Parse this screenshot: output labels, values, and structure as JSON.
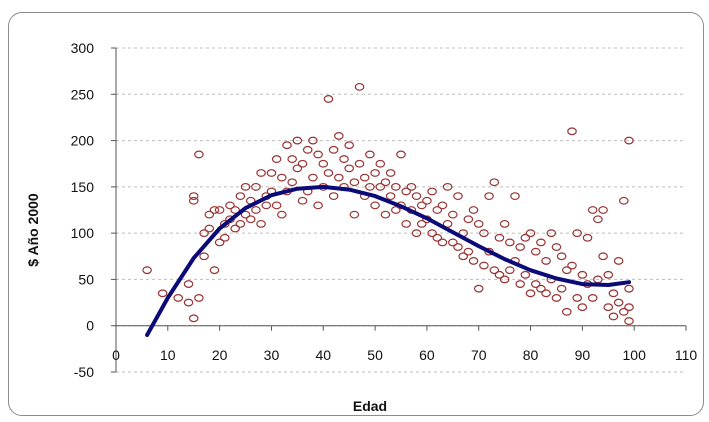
{
  "chart_data": {
    "type": "scatter",
    "title": "",
    "xlabel": "Edad",
    "ylabel": "$ Año 2000",
    "xlim": [
      0,
      110
    ],
    "ylim": [
      -50,
      300
    ],
    "x_ticks": [
      0,
      10,
      20,
      30,
      40,
      50,
      60,
      70,
      80,
      90,
      100,
      110
    ],
    "y_ticks": [
      -50,
      0,
      50,
      100,
      150,
      200,
      250,
      300
    ],
    "grid": "horizontal-dashed",
    "legend": "none",
    "colors": {
      "points": "#993333",
      "trend": "#0a0a78",
      "grid": "#bdbdbd"
    },
    "series": [
      {
        "type": "scatter",
        "points": [
          [
            6,
            60
          ],
          [
            9,
            35
          ],
          [
            12,
            30
          ],
          [
            14,
            25
          ],
          [
            14,
            45
          ],
          [
            15,
            140
          ],
          [
            15,
            135
          ],
          [
            15,
            8
          ],
          [
            16,
            185
          ],
          [
            16,
            30
          ],
          [
            17,
            100
          ],
          [
            17,
            75
          ],
          [
            18,
            105
          ],
          [
            18,
            120
          ],
          [
            19,
            125
          ],
          [
            19,
            60
          ],
          [
            20,
            90
          ],
          [
            20,
            125
          ],
          [
            21,
            110
          ],
          [
            21,
            95
          ],
          [
            22,
            115
          ],
          [
            22,
            130
          ],
          [
            23,
            105
          ],
          [
            23,
            125
          ],
          [
            24,
            140
          ],
          [
            24,
            110
          ],
          [
            25,
            120
          ],
          [
            25,
            150
          ],
          [
            26,
            115
          ],
          [
            26,
            135
          ],
          [
            27,
            150
          ],
          [
            27,
            125
          ],
          [
            28,
            165
          ],
          [
            28,
            110
          ],
          [
            29,
            140
          ],
          [
            29,
            130
          ],
          [
            30,
            165
          ],
          [
            30,
            145
          ],
          [
            31,
            180
          ],
          [
            31,
            130
          ],
          [
            32,
            160
          ],
          [
            32,
            120
          ],
          [
            33,
            195
          ],
          [
            33,
            145
          ],
          [
            34,
            180
          ],
          [
            34,
            155
          ],
          [
            35,
            200
          ],
          [
            35,
            170
          ],
          [
            36,
            175
          ],
          [
            36,
            135
          ],
          [
            37,
            190
          ],
          [
            37,
            145
          ],
          [
            38,
            200
          ],
          [
            38,
            160
          ],
          [
            39,
            185
          ],
          [
            39,
            130
          ],
          [
            40,
            175
          ],
          [
            40,
            150
          ],
          [
            41,
            245
          ],
          [
            41,
            165
          ],
          [
            42,
            190
          ],
          [
            42,
            140
          ],
          [
            43,
            205
          ],
          [
            43,
            160
          ],
          [
            44,
            180
          ],
          [
            44,
            150
          ],
          [
            45,
            195
          ],
          [
            45,
            170
          ],
          [
            46,
            155
          ],
          [
            46,
            120
          ],
          [
            47,
            258
          ],
          [
            47,
            175
          ],
          [
            48,
            160
          ],
          [
            48,
            140
          ],
          [
            49,
            185
          ],
          [
            49,
            150
          ],
          [
            50,
            165
          ],
          [
            50,
            130
          ],
          [
            51,
            175
          ],
          [
            51,
            150
          ],
          [
            52,
            155
          ],
          [
            52,
            120
          ],
          [
            53,
            165
          ],
          [
            53,
            140
          ],
          [
            54,
            150
          ],
          [
            54,
            125
          ],
          [
            55,
            185
          ],
          [
            55,
            130
          ],
          [
            56,
            145
          ],
          [
            56,
            110
          ],
          [
            57,
            150
          ],
          [
            57,
            125
          ],
          [
            58,
            140
          ],
          [
            58,
            100
          ],
          [
            59,
            130
          ],
          [
            59,
            110
          ],
          [
            60,
            135
          ],
          [
            60,
            115
          ],
          [
            61,
            145
          ],
          [
            61,
            100
          ],
          [
            62,
            125
          ],
          [
            62,
            95
          ],
          [
            63,
            130
          ],
          [
            63,
            90
          ],
          [
            64,
            150
          ],
          [
            64,
            110
          ],
          [
            65,
            120
          ],
          [
            65,
            90
          ],
          [
            66,
            140
          ],
          [
            66,
            85
          ],
          [
            67,
            100
          ],
          [
            67,
            75
          ],
          [
            68,
            115
          ],
          [
            68,
            80
          ],
          [
            69,
            125
          ],
          [
            69,
            70
          ],
          [
            70,
            110
          ],
          [
            70,
            40
          ],
          [
            71,
            100
          ],
          [
            71,
            65
          ],
          [
            72,
            140
          ],
          [
            72,
            80
          ],
          [
            73,
            155
          ],
          [
            73,
            60
          ],
          [
            74,
            95
          ],
          [
            74,
            55
          ],
          [
            75,
            110
          ],
          [
            75,
            50
          ],
          [
            76,
            90
          ],
          [
            76,
            60
          ],
          [
            77,
            140
          ],
          [
            77,
            70
          ],
          [
            78,
            85
          ],
          [
            78,
            45
          ],
          [
            79,
            95
          ],
          [
            79,
            55
          ],
          [
            80,
            100
          ],
          [
            80,
            35
          ],
          [
            81,
            80
          ],
          [
            81,
            45
          ],
          [
            82,
            90
          ],
          [
            82,
            40
          ],
          [
            83,
            70
          ],
          [
            83,
            35
          ],
          [
            84,
            100
          ],
          [
            84,
            50
          ],
          [
            85,
            85
          ],
          [
            85,
            30
          ],
          [
            86,
            75
          ],
          [
            86,
            40
          ],
          [
            87,
            60
          ],
          [
            87,
            15
          ],
          [
            88,
            210
          ],
          [
            88,
            65
          ],
          [
            89,
            100
          ],
          [
            89,
            30
          ],
          [
            90,
            55
          ],
          [
            90,
            20
          ],
          [
            91,
            95
          ],
          [
            91,
            45
          ],
          [
            92,
            125
          ],
          [
            92,
            30
          ],
          [
            93,
            115
          ],
          [
            93,
            50
          ],
          [
            94,
            125
          ],
          [
            94,
            75
          ],
          [
            95,
            55
          ],
          [
            95,
            20
          ],
          [
            96,
            35
          ],
          [
            96,
            10
          ],
          [
            97,
            70
          ],
          [
            97,
            25
          ],
          [
            98,
            135
          ],
          [
            98,
            15
          ],
          [
            99,
            200
          ],
          [
            99,
            40
          ],
          [
            99,
            5
          ],
          [
            99,
            20
          ]
        ]
      },
      {
        "type": "line",
        "name": "",
        "points": [
          [
            6,
            -10
          ],
          [
            10,
            30
          ],
          [
            15,
            73
          ],
          [
            20,
            105
          ],
          [
            25,
            127
          ],
          [
            30,
            141
          ],
          [
            35,
            148
          ],
          [
            40,
            150
          ],
          [
            45,
            147
          ],
          [
            50,
            140
          ],
          [
            55,
            129
          ],
          [
            60,
            116
          ],
          [
            65,
            101
          ],
          [
            70,
            86
          ],
          [
            75,
            72
          ],
          [
            80,
            60
          ],
          [
            85,
            51
          ],
          [
            90,
            45
          ],
          [
            95,
            44
          ],
          [
            99,
            47
          ]
        ]
      }
    ]
  }
}
